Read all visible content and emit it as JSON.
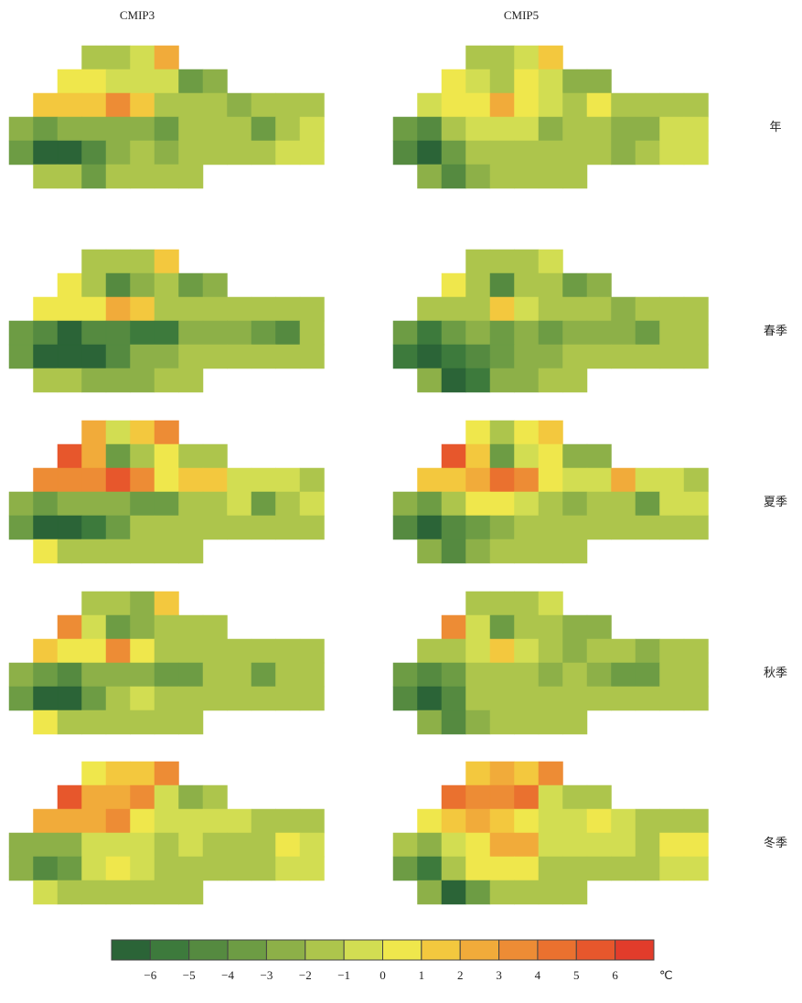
{
  "columns": [
    "CMIP3",
    "CMIP5"
  ],
  "rows": [
    "年",
    "春季",
    "夏季",
    "秋季",
    "冬季"
  ],
  "grids": [
    [
      [
        [
          null,
          null,
          null,
          -1.5,
          -1.5,
          -0.5,
          2.5,
          null,
          null,
          null,
          null,
          null,
          null
        ],
        [
          null,
          null,
          0.5,
          0.5,
          -0.5,
          -0.5,
          -0.5,
          -3.5,
          -2.5,
          null,
          null,
          null,
          null
        ],
        [
          null,
          1.5,
          1.5,
          1.5,
          3.5,
          1.5,
          -1.5,
          -1.5,
          -1.5,
          -2.5,
          -1.5,
          -1.5,
          -1.5
        ],
        [
          -2.5,
          -3.5,
          -2.5,
          -2.5,
          -2.5,
          -2.5,
          -3.5,
          -1.5,
          -1.5,
          -1.5,
          -3.5,
          -1.5,
          -0.5
        ],
        [
          -3.5,
          -6.5,
          -6.5,
          -4.5,
          -2.5,
          -1.5,
          -2.5,
          -1.5,
          -1.5,
          -1.5,
          -1.5,
          -0.5,
          -0.5
        ],
        [
          null,
          -1.5,
          -1.5,
          -3.5,
          -1.5,
          -1.5,
          -1.5,
          -1.5,
          null,
          null,
          null,
          null,
          null
        ]
      ],
      [
        [
          null,
          null,
          null,
          -1.5,
          -1.5,
          -0.5,
          1.5,
          null,
          null,
          null,
          null,
          null,
          null
        ],
        [
          null,
          null,
          0.5,
          -0.5,
          -1.5,
          0.5,
          -0.5,
          -2.5,
          -2.5,
          null,
          null,
          null,
          null
        ],
        [
          null,
          -0.5,
          0.5,
          0.5,
          2.5,
          0.5,
          -0.5,
          -1.5,
          0.5,
          -1.5,
          -1.5,
          -1.5,
          -1.5
        ],
        [
          -3.5,
          -4.5,
          -1.5,
          -0.5,
          -0.5,
          -0.5,
          -2.5,
          -1.5,
          -1.5,
          -2.5,
          -2.5,
          -0.5,
          -0.5
        ],
        [
          -4.5,
          -6.5,
          -3.5,
          -1.5,
          -1.5,
          -1.5,
          -1.5,
          -1.5,
          -1.5,
          -2.5,
          -1.5,
          -0.5,
          -0.5
        ],
        [
          null,
          -2.5,
          -4.5,
          -2.5,
          -1.5,
          -1.5,
          -1.5,
          -1.5,
          null,
          null,
          null,
          null,
          null
        ]
      ]
    ],
    [
      [
        [
          null,
          null,
          null,
          -1.5,
          -1.5,
          -1.5,
          1.5,
          null,
          null,
          null,
          null,
          null,
          null
        ],
        [
          null,
          null,
          0.5,
          -1.5,
          -4.5,
          -2.5,
          -1.5,
          -3.5,
          -2.5,
          null,
          null,
          null,
          null
        ],
        [
          null,
          0.5,
          0.5,
          0.5,
          2.5,
          1.5,
          -1.5,
          -1.5,
          -1.5,
          -1.5,
          -1.5,
          -1.5,
          -1.5
        ],
        [
          -3.5,
          -4.5,
          -6.5,
          -4.5,
          -4.5,
          -5.5,
          -5.5,
          -2.5,
          -2.5,
          -2.5,
          -3.5,
          -4.5,
          -1.5
        ],
        [
          -3.5,
          -6.5,
          -6.5,
          -6.5,
          -4.5,
          -2.5,
          -2.5,
          -1.5,
          -1.5,
          -1.5,
          -1.5,
          -1.5,
          -1.5
        ],
        [
          null,
          -1.5,
          -1.5,
          -2.5,
          -2.5,
          -2.5,
          -1.5,
          -1.5,
          null,
          null,
          null,
          null,
          null
        ]
      ],
      [
        [
          null,
          null,
          null,
          -1.5,
          -1.5,
          -1.5,
          -0.5,
          null,
          null,
          null,
          null,
          null,
          null
        ],
        [
          null,
          null,
          0.5,
          -1.5,
          -4.5,
          -1.5,
          -1.5,
          -3.5,
          -2.5,
          null,
          null,
          null,
          null
        ],
        [
          null,
          -1.5,
          -1.5,
          -1.5,
          1.5,
          -0.5,
          -1.5,
          -1.5,
          -1.5,
          -2.5,
          -1.5,
          -1.5,
          -1.5
        ],
        [
          -3.5,
          -5.5,
          -3.5,
          -2.5,
          -3.5,
          -2.5,
          -3.5,
          -2.5,
          -2.5,
          -2.5,
          -3.5,
          -1.5,
          -1.5
        ],
        [
          -5.5,
          -6.5,
          -5.5,
          -4.5,
          -3.5,
          -2.5,
          -2.5,
          -1.5,
          -1.5,
          -1.5,
          -1.5,
          -1.5,
          -1.5
        ],
        [
          null,
          -2.5,
          -6.5,
          -5.5,
          -2.5,
          -2.5,
          -1.5,
          -1.5,
          null,
          null,
          null,
          null,
          null
        ]
      ]
    ],
    [
      [
        [
          null,
          null,
          null,
          2.5,
          -0.5,
          1.5,
          3.5,
          null,
          null,
          null,
          null,
          null,
          null
        ],
        [
          null,
          null,
          5.5,
          2.5,
          -3.5,
          -1.5,
          0.5,
          -1.5,
          -1.5,
          null,
          null,
          null,
          null
        ],
        [
          null,
          3.5,
          3.5,
          3.5,
          5.5,
          3.5,
          0.5,
          1.5,
          1.5,
          -0.5,
          -0.5,
          -0.5,
          -1.5
        ],
        [
          -2.5,
          -3.5,
          -2.5,
          -2.5,
          -2.5,
          -3.5,
          -3.5,
          -1.5,
          -1.5,
          -0.5,
          -3.5,
          -1.5,
          -0.5
        ],
        [
          -3.5,
          -6.5,
          -6.5,
          -5.5,
          -3.5,
          -1.5,
          -1.5,
          -1.5,
          -1.5,
          -1.5,
          -1.5,
          -1.5,
          -1.5
        ],
        [
          null,
          0.5,
          -1.5,
          -1.5,
          -1.5,
          -1.5,
          -1.5,
          -1.5,
          null,
          null,
          null,
          null,
          null
        ]
      ],
      [
        [
          null,
          null,
          null,
          0.5,
          -1.5,
          0.5,
          1.5,
          null,
          null,
          null,
          null,
          null,
          null
        ],
        [
          null,
          null,
          5.5,
          1.5,
          -3.5,
          -0.5,
          0.5,
          -2.5,
          -2.5,
          null,
          null,
          null,
          null
        ],
        [
          null,
          1.5,
          1.5,
          2.5,
          4.5,
          3.5,
          0.5,
          -0.5,
          -0.5,
          2.5,
          -0.5,
          -0.5,
          -1.5
        ],
        [
          -2.5,
          -3.5,
          -1.5,
          0.5,
          0.5,
          -0.5,
          -1.5,
          -2.5,
          -1.5,
          -1.5,
          -3.5,
          -0.5,
          -0.5
        ],
        [
          -4.5,
          -6.5,
          -4.5,
          -3.5,
          -2.5,
          -1.5,
          -1.5,
          -1.5,
          -1.5,
          -1.5,
          -1.5,
          -1.5,
          -1.5
        ],
        [
          null,
          -2.5,
          -4.5,
          -2.5,
          -1.5,
          -1.5,
          -1.5,
          -1.5,
          null,
          null,
          null,
          null,
          null
        ]
      ]
    ],
    [
      [
        [
          null,
          null,
          null,
          -1.5,
          -1.5,
          -2.5,
          1.5,
          null,
          null,
          null,
          null,
          null,
          null
        ],
        [
          null,
          null,
          3.5,
          -0.5,
          -3.5,
          -2.5,
          -1.5,
          -1.5,
          -1.5,
          null,
          null,
          null,
          null
        ],
        [
          null,
          1.5,
          0.5,
          0.5,
          3.5,
          0.5,
          -1.5,
          -1.5,
          -1.5,
          -1.5,
          -1.5,
          -1.5,
          -1.5
        ],
        [
          -2.5,
          -3.5,
          -4.5,
          -2.5,
          -2.5,
          -2.5,
          -3.5,
          -3.5,
          -1.5,
          -1.5,
          -3.5,
          -1.5,
          -1.5
        ],
        [
          -3.5,
          -6.5,
          -6.5,
          -3.5,
          -1.5,
          -0.5,
          -1.5,
          -1.5,
          -1.5,
          -1.5,
          -1.5,
          -1.5,
          -1.5
        ],
        [
          null,
          0.5,
          -1.5,
          -1.5,
          -1.5,
          -1.5,
          -1.5,
          -1.5,
          null,
          null,
          null,
          null,
          null
        ]
      ],
      [
        [
          null,
          null,
          null,
          -1.5,
          -1.5,
          -1.5,
          -0.5,
          null,
          null,
          null,
          null,
          null,
          null
        ],
        [
          null,
          null,
          3.5,
          -0.5,
          -3.5,
          -1.5,
          -1.5,
          -2.5,
          -2.5,
          null,
          null,
          null,
          null
        ],
        [
          null,
          -1.5,
          -1.5,
          -0.5,
          1.5,
          -0.5,
          -1.5,
          -2.5,
          -1.5,
          -1.5,
          -2.5,
          -1.5,
          -1.5
        ],
        [
          -3.5,
          -4.5,
          -3.5,
          -1.5,
          -1.5,
          -1.5,
          -2.5,
          -1.5,
          -2.5,
          -3.5,
          -3.5,
          -1.5,
          -1.5
        ],
        [
          -4.5,
          -6.5,
          -4.5,
          -1.5,
          -1.5,
          -1.5,
          -1.5,
          -1.5,
          -1.5,
          -1.5,
          -1.5,
          -1.5,
          -1.5
        ],
        [
          null,
          -2.5,
          -4.5,
          -2.5,
          -1.5,
          -1.5,
          -1.5,
          -1.5,
          null,
          null,
          null,
          null,
          null
        ]
      ]
    ],
    [
      [
        [
          null,
          null,
          null,
          0.5,
          1.5,
          1.5,
          3.5,
          null,
          null,
          null,
          null,
          null,
          null
        ],
        [
          null,
          null,
          5.5,
          2.5,
          2.5,
          3.5,
          -0.5,
          -2.5,
          -1.5,
          null,
          null,
          null,
          null
        ],
        [
          null,
          2.5,
          2.5,
          2.5,
          3.5,
          0.5,
          -0.5,
          -0.5,
          -0.5,
          -0.5,
          -1.5,
          -1.5,
          -1.5
        ],
        [
          -2.5,
          -2.5,
          -2.5,
          -0.5,
          -0.5,
          -0.5,
          -1.5,
          -0.5,
          -1.5,
          -1.5,
          -1.5,
          0.5,
          -0.5
        ],
        [
          -2.5,
          -4.5,
          -3.5,
          -0.5,
          0.5,
          -0.5,
          -1.5,
          -1.5,
          -1.5,
          -1.5,
          -1.5,
          -0.5,
          -0.5
        ],
        [
          null,
          -0.5,
          -1.5,
          -1.5,
          -1.5,
          -1.5,
          -1.5,
          -1.5,
          null,
          null,
          null,
          null,
          null
        ]
      ],
      [
        [
          null,
          null,
          null,
          1.5,
          2.5,
          1.5,
          3.5,
          null,
          null,
          null,
          null,
          null,
          null
        ],
        [
          null,
          null,
          4.5,
          3.5,
          3.5,
          4.5,
          -0.5,
          -1.5,
          -1.5,
          null,
          null,
          null,
          null
        ],
        [
          null,
          0.5,
          1.5,
          2.5,
          1.5,
          0.5,
          -0.5,
          -0.5,
          0.5,
          -0.5,
          -1.5,
          -1.5,
          -1.5
        ],
        [
          -1.5,
          -2.5,
          -0.5,
          0.5,
          2.5,
          2.5,
          -0.5,
          -0.5,
          -0.5,
          -0.5,
          -1.5,
          0.5,
          0.5
        ],
        [
          -3.5,
          -5.5,
          -1.5,
          0.5,
          0.5,
          0.5,
          -1.5,
          -1.5,
          -1.5,
          -1.5,
          -1.5,
          -0.5,
          -0.5
        ],
        [
          null,
          -2.5,
          -6.5,
          -3.5,
          -1.5,
          -1.5,
          -1.5,
          -1.5,
          null,
          null,
          null,
          null,
          null
        ]
      ]
    ]
  ],
  "colorbar": {
    "ticks": [
      {
        "value": -6,
        "label": "−6"
      },
      {
        "value": -5,
        "label": "−5"
      },
      {
        "value": -4,
        "label": "−4"
      },
      {
        "value": -3,
        "label": "−3"
      },
      {
        "value": -2,
        "label": "−2"
      },
      {
        "value": -1,
        "label": "−1"
      },
      0,
      1,
      2,
      3,
      4,
      5,
      6
    ],
    "colors": [
      "#2b6437",
      "#3d7a3c",
      "#558a40",
      "#6d9c44",
      "#8db048",
      "#adc54c",
      "#d2dd52",
      "#efe74c",
      "#f3c83e",
      "#f1ab3a",
      "#ed8c35",
      "#ea712f",
      "#e7572c",
      "#e23c2b"
    ],
    "unit": "℃"
  }
}
